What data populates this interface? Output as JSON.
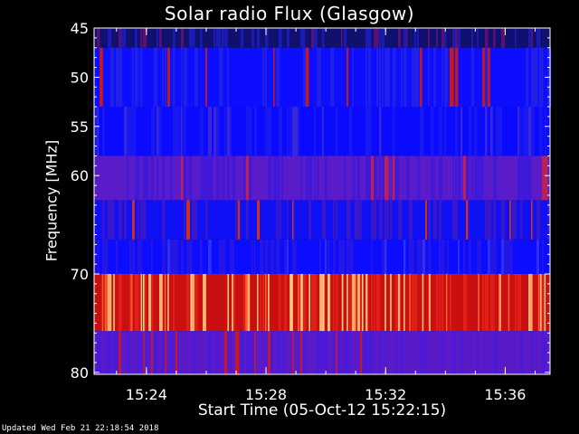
{
  "chart_data": {
    "type": "heatmap",
    "title": "Solar radio Flux (Glasgow)",
    "xlabel": "Start Time (05-Oct-12 15:22:15)",
    "ylabel": "Frequency [MHz]",
    "x_range": [
      "15:22:15",
      "15:37:30"
    ],
    "x_ticks": [
      {
        "label": "15:24",
        "minutes": 1.75
      },
      {
        "label": "15:28",
        "minutes": 5.75
      },
      {
        "label": "15:32",
        "minutes": 9.75
      },
      {
        "label": "15:36",
        "minutes": 13.75
      }
    ],
    "y_range": [
      45,
      80.2
    ],
    "y_ticks": [
      45,
      50,
      55,
      60,
      70,
      80
    ],
    "bands": [
      {
        "from": 45,
        "to": 47,
        "base": "#10106e",
        "alt": "#1a1ab4",
        "spike": "#5a1070"
      },
      {
        "from": 47,
        "to": 53,
        "base": "#0d0dff",
        "alt": "#2020e8",
        "spike": "#c01a20"
      },
      {
        "from": 53,
        "to": 58,
        "base": "#0a0aff",
        "alt": "#1818f0",
        "spike": "#3a28d8"
      },
      {
        "from": 58,
        "to": 62.5,
        "base": "#5a1cc8",
        "alt": "#4018d8",
        "spike": "#c02050"
      },
      {
        "from": 62.5,
        "to": 66.5,
        "base": "#1010f4",
        "alt": "#3a18c8",
        "spike": "#d03018"
      },
      {
        "from": 66.5,
        "to": 70,
        "base": "#0c0cff",
        "alt": "#2416e4",
        "spike": "#3030f0"
      },
      {
        "from": 70,
        "to": 75.8,
        "base": "#c81010",
        "alt": "#e02018",
        "spike": "#ffb070"
      },
      {
        "from": 75.8,
        "to": 80.2,
        "base": "#5a1ac8",
        "alt": "#4a1ad8",
        "spike": "#c81828"
      }
    ],
    "colors": {
      "background": "#000000",
      "axis": "#ffffff",
      "text": "#ffffff"
    }
  },
  "footer": "Updated Wed Feb 21 22:18:54 2018"
}
